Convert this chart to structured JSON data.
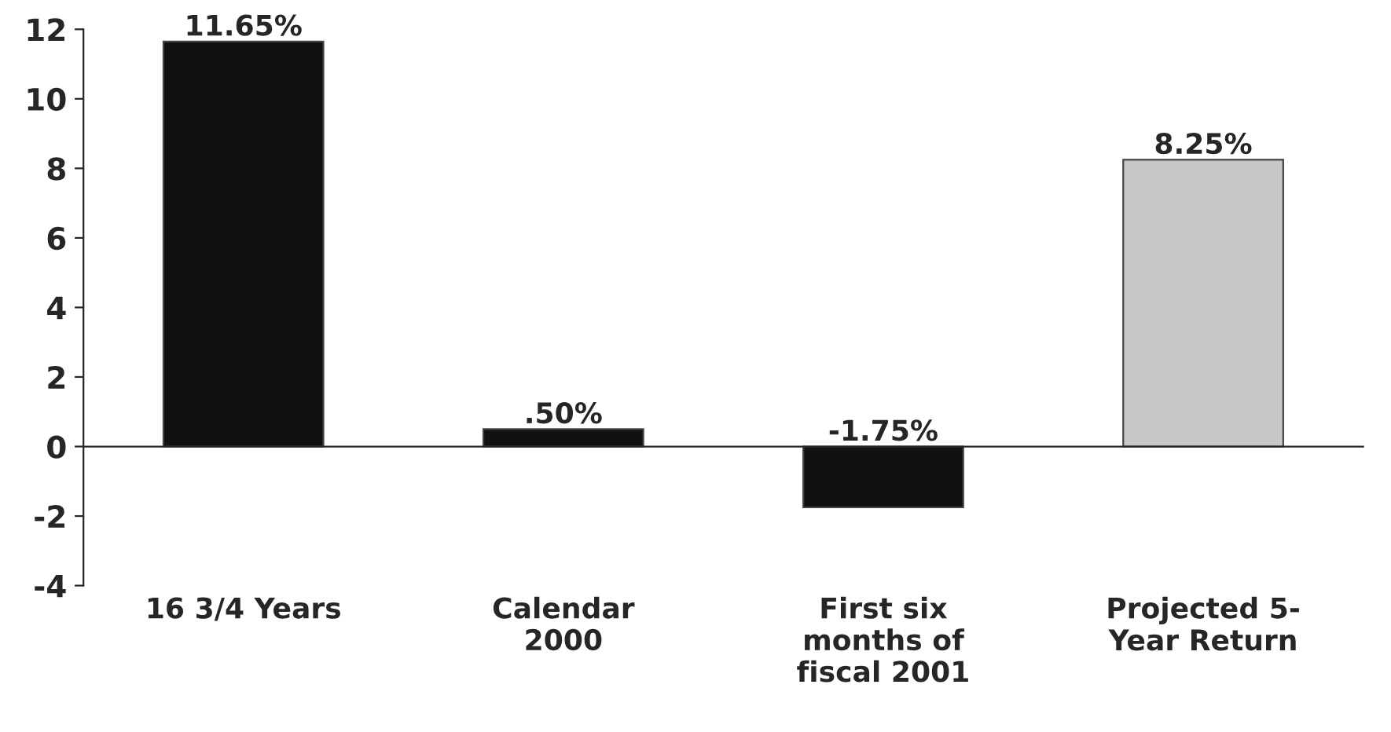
{
  "chart_data": {
    "type": "bar",
    "categories": [
      "16 3/4 Years",
      "Calendar\n2000",
      "First six\nmonths of\nfiscal 2001",
      "Projected 5-\nYear Return"
    ],
    "values": [
      11.65,
      0.5,
      -1.75,
      8.25
    ],
    "colors": [
      "#111111",
      "#111111",
      "#111111",
      "#c8c8c8"
    ],
    "value_labels": [
      "11.65%",
      ".50%",
      "-1.75%",
      "8.25%"
    ],
    "ylim": [
      -4,
      12
    ],
    "yticks": [
      -4,
      -2,
      0,
      2,
      4,
      6,
      8,
      10,
      12
    ]
  }
}
